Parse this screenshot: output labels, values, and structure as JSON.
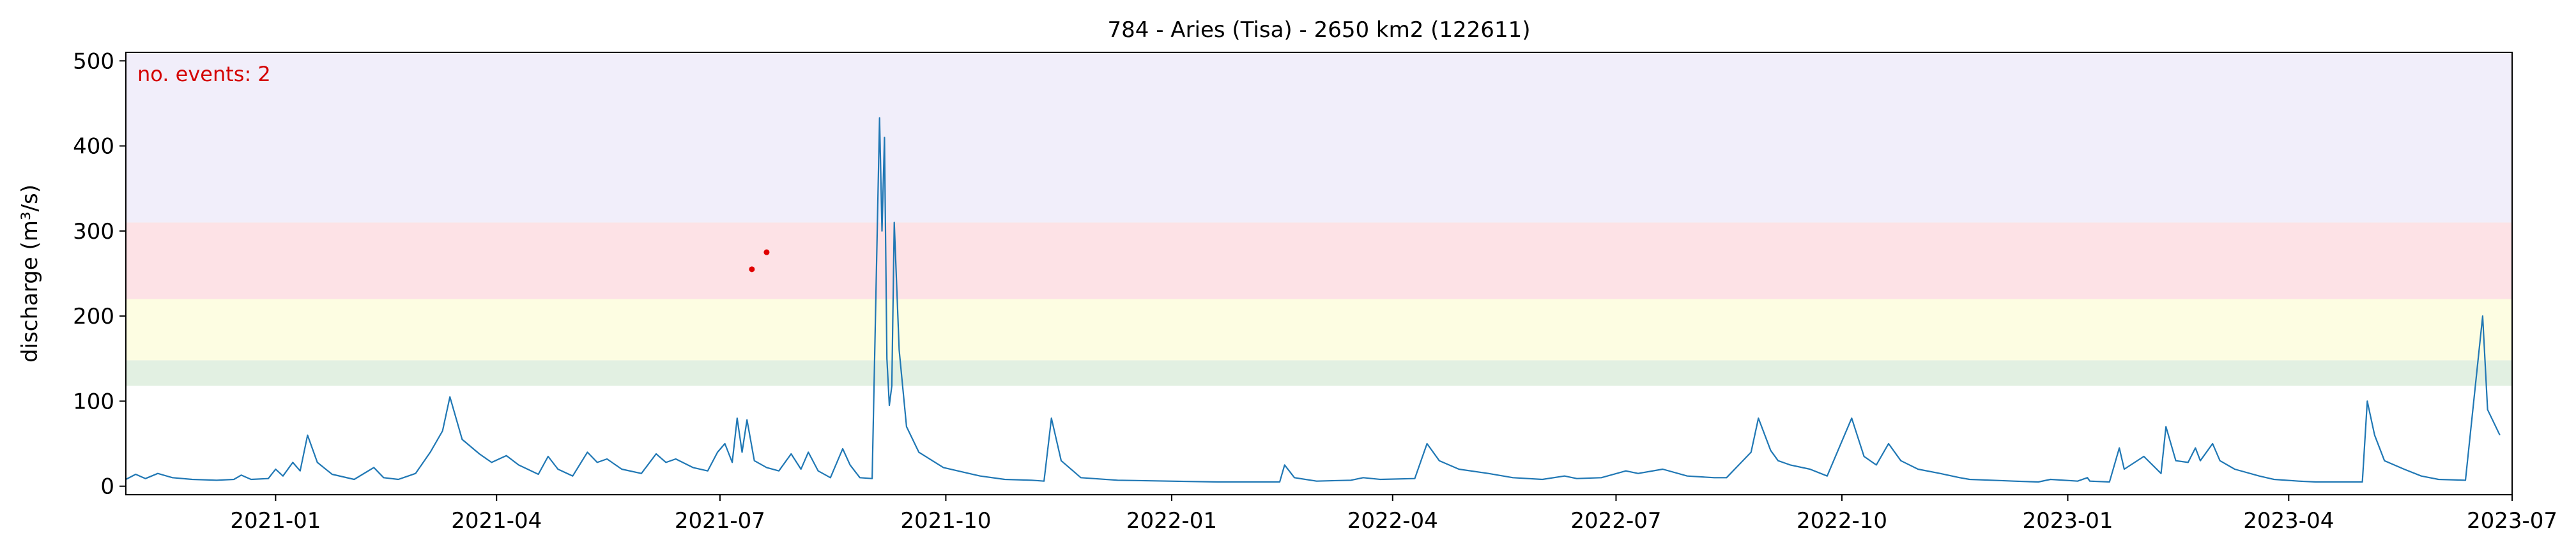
{
  "chart_data": {
    "type": "line",
    "title": "784 - Aries (Tisa) - 2650 km2 (122611)",
    "xlabel": "",
    "ylabel": "discharge (m³/s)",
    "annotation": "no. events: 2",
    "xlim": [
      "2020-11-01",
      "2023-07-01"
    ],
    "ylim": [
      -10,
      510
    ],
    "xticks": [
      "2021-01",
      "2021-04",
      "2021-07",
      "2021-10",
      "2022-01",
      "2022-04",
      "2022-07",
      "2022-10",
      "2023-01",
      "2023-04",
      "2023-07"
    ],
    "yticks": [
      0,
      100,
      200,
      300,
      400,
      500
    ],
    "grid": false,
    "threshold_bands": [
      {
        "from": 118,
        "to": 148,
        "color": "#e2f0e2"
      },
      {
        "from": 148,
        "to": 220,
        "color": "#fdfde2"
      },
      {
        "from": 220,
        "to": 310,
        "color": "#fde2e6"
      },
      {
        "from": 310,
        "to": 510,
        "color": "#f1eefa"
      }
    ],
    "colors": {
      "line": "#1f77b4",
      "events": "#e00000",
      "annotation": "#d40000"
    },
    "series": [
      {
        "values": [
          [
            "2020-11-01",
            8
          ],
          [
            "2020-11-05",
            14
          ],
          [
            "2020-11-09",
            9
          ],
          [
            "2020-11-14",
            15
          ],
          [
            "2020-11-20",
            10
          ],
          [
            "2020-11-28",
            8
          ],
          [
            "2020-12-08",
            7
          ],
          [
            "2020-12-15",
            8
          ],
          [
            "2020-12-18",
            13
          ],
          [
            "2020-12-22",
            8
          ],
          [
            "2020-12-29",
            9
          ],
          [
            "2021-01-01",
            20
          ],
          [
            "2021-01-04",
            12
          ],
          [
            "2021-01-08",
            28
          ],
          [
            "2021-01-11",
            18
          ],
          [
            "2021-01-14",
            60
          ],
          [
            "2021-01-18",
            28
          ],
          [
            "2021-01-24",
            14
          ],
          [
            "2021-02-02",
            8
          ],
          [
            "2021-02-10",
            22
          ],
          [
            "2021-02-14",
            10
          ],
          [
            "2021-02-20",
            8
          ],
          [
            "2021-02-27",
            15
          ],
          [
            "2021-03-05",
            40
          ],
          [
            "2021-03-10",
            65
          ],
          [
            "2021-03-13",
            105
          ],
          [
            "2021-03-18",
            55
          ],
          [
            "2021-03-25",
            38
          ],
          [
            "2021-03-30",
            28
          ],
          [
            "2021-04-05",
            36
          ],
          [
            "2021-04-10",
            25
          ],
          [
            "2021-04-18",
            14
          ],
          [
            "2021-04-22",
            35
          ],
          [
            "2021-04-26",
            20
          ],
          [
            "2021-05-02",
            12
          ],
          [
            "2021-05-08",
            40
          ],
          [
            "2021-05-12",
            28
          ],
          [
            "2021-05-16",
            32
          ],
          [
            "2021-05-22",
            20
          ],
          [
            "2021-05-30",
            15
          ],
          [
            "2021-06-05",
            38
          ],
          [
            "2021-06-09",
            28
          ],
          [
            "2021-06-13",
            32
          ],
          [
            "2021-06-20",
            22
          ],
          [
            "2021-06-26",
            18
          ],
          [
            "2021-06-30",
            40
          ],
          [
            "2021-07-03",
            50
          ],
          [
            "2021-07-06",
            28
          ],
          [
            "2021-07-08",
            80
          ],
          [
            "2021-07-10",
            40
          ],
          [
            "2021-07-12",
            78
          ],
          [
            "2021-07-15",
            30
          ],
          [
            "2021-07-20",
            22
          ],
          [
            "2021-07-25",
            18
          ],
          [
            "2021-07-30",
            38
          ],
          [
            "2021-08-03",
            20
          ],
          [
            "2021-08-06",
            40
          ],
          [
            "2021-08-10",
            18
          ],
          [
            "2021-08-15",
            10
          ],
          [
            "2021-08-20",
            44
          ],
          [
            "2021-08-23",
            25
          ],
          [
            "2021-08-27",
            10
          ],
          [
            "2021-09-01",
            9
          ],
          [
            "2021-09-04",
            433
          ],
          [
            "2021-09-05",
            300
          ],
          [
            "2021-09-06",
            410
          ],
          [
            "2021-09-07",
            150
          ],
          [
            "2021-09-08",
            95
          ],
          [
            "2021-09-09",
            118
          ],
          [
            "2021-09-10",
            310
          ],
          [
            "2021-09-12",
            160
          ],
          [
            "2021-09-15",
            70
          ],
          [
            "2021-09-20",
            40
          ],
          [
            "2021-09-30",
            22
          ],
          [
            "2021-10-15",
            12
          ],
          [
            "2021-10-25",
            8
          ],
          [
            "2021-11-05",
            7
          ],
          [
            "2021-11-10",
            6
          ],
          [
            "2021-11-13",
            80
          ],
          [
            "2021-11-17",
            30
          ],
          [
            "2021-11-25",
            10
          ],
          [
            "2021-12-10",
            7
          ],
          [
            "2021-12-31",
            6
          ],
          [
            "2022-01-20",
            5
          ],
          [
            "2022-02-14",
            5
          ],
          [
            "2022-02-16",
            25
          ],
          [
            "2022-02-20",
            10
          ],
          [
            "2022-03-01",
            6
          ],
          [
            "2022-03-15",
            7
          ],
          [
            "2022-03-20",
            10
          ],
          [
            "2022-03-27",
            8
          ],
          [
            "2022-04-10",
            9
          ],
          [
            "2022-04-15",
            50
          ],
          [
            "2022-04-20",
            30
          ],
          [
            "2022-04-28",
            20
          ],
          [
            "2022-05-10",
            15
          ],
          [
            "2022-05-20",
            10
          ],
          [
            "2022-06-01",
            8
          ],
          [
            "2022-06-10",
            12
          ],
          [
            "2022-06-15",
            9
          ],
          [
            "2022-06-25",
            10
          ],
          [
            "2022-07-05",
            18
          ],
          [
            "2022-07-10",
            15
          ],
          [
            "2022-07-20",
            20
          ],
          [
            "2022-07-30",
            12
          ],
          [
            "2022-08-10",
            10
          ],
          [
            "2022-08-15",
            10
          ],
          [
            "2022-08-20",
            25
          ],
          [
            "2022-08-25",
            40
          ],
          [
            "2022-08-28",
            80
          ],
          [
            "2022-09-02",
            42
          ],
          [
            "2022-09-05",
            30
          ],
          [
            "2022-09-10",
            25
          ],
          [
            "2022-09-18",
            20
          ],
          [
            "2022-09-25",
            12
          ],
          [
            "2022-10-05",
            80
          ],
          [
            "2022-10-10",
            35
          ],
          [
            "2022-10-15",
            25
          ],
          [
            "2022-10-20",
            50
          ],
          [
            "2022-10-25",
            30
          ],
          [
            "2022-11-01",
            20
          ],
          [
            "2022-11-10",
            15
          ],
          [
            "2022-11-18",
            10
          ],
          [
            "2022-11-22",
            8
          ],
          [
            "2022-12-01",
            7
          ],
          [
            "2022-12-10",
            6
          ],
          [
            "2022-12-20",
            5
          ],
          [
            "2022-12-25",
            8
          ],
          [
            "2023-01-05",
            6
          ],
          [
            "2023-01-09",
            10
          ],
          [
            "2023-01-10",
            6
          ],
          [
            "2023-01-18",
            5
          ],
          [
            "2023-01-22",
            45
          ],
          [
            "2023-01-24",
            20
          ],
          [
            "2023-02-01",
            35
          ],
          [
            "2023-02-08",
            15
          ],
          [
            "2023-02-10",
            70
          ],
          [
            "2023-02-14",
            30
          ],
          [
            "2023-02-19",
            28
          ],
          [
            "2023-02-22",
            45
          ],
          [
            "2023-02-24",
            30
          ],
          [
            "2023-03-01",
            50
          ],
          [
            "2023-03-04",
            30
          ],
          [
            "2023-03-10",
            20
          ],
          [
            "2023-03-20",
            12
          ],
          [
            "2023-03-26",
            8
          ],
          [
            "2023-04-05",
            6
          ],
          [
            "2023-04-12",
            5
          ],
          [
            "2023-04-18",
            5
          ],
          [
            "2023-05-01",
            5
          ],
          [
            "2023-05-03",
            100
          ],
          [
            "2023-05-06",
            60
          ],
          [
            "2023-05-10",
            30
          ],
          [
            "2023-05-18",
            20
          ],
          [
            "2023-05-25",
            12
          ],
          [
            "2023-06-01",
            8
          ],
          [
            "2023-06-12",
            7
          ],
          [
            "2023-06-19",
            200
          ],
          [
            "2023-06-21",
            90
          ],
          [
            "2023-06-26",
            60
          ]
        ]
      }
    ],
    "events": [
      [
        "2021-07-14",
        255
      ],
      [
        "2021-07-20",
        275
      ]
    ]
  }
}
